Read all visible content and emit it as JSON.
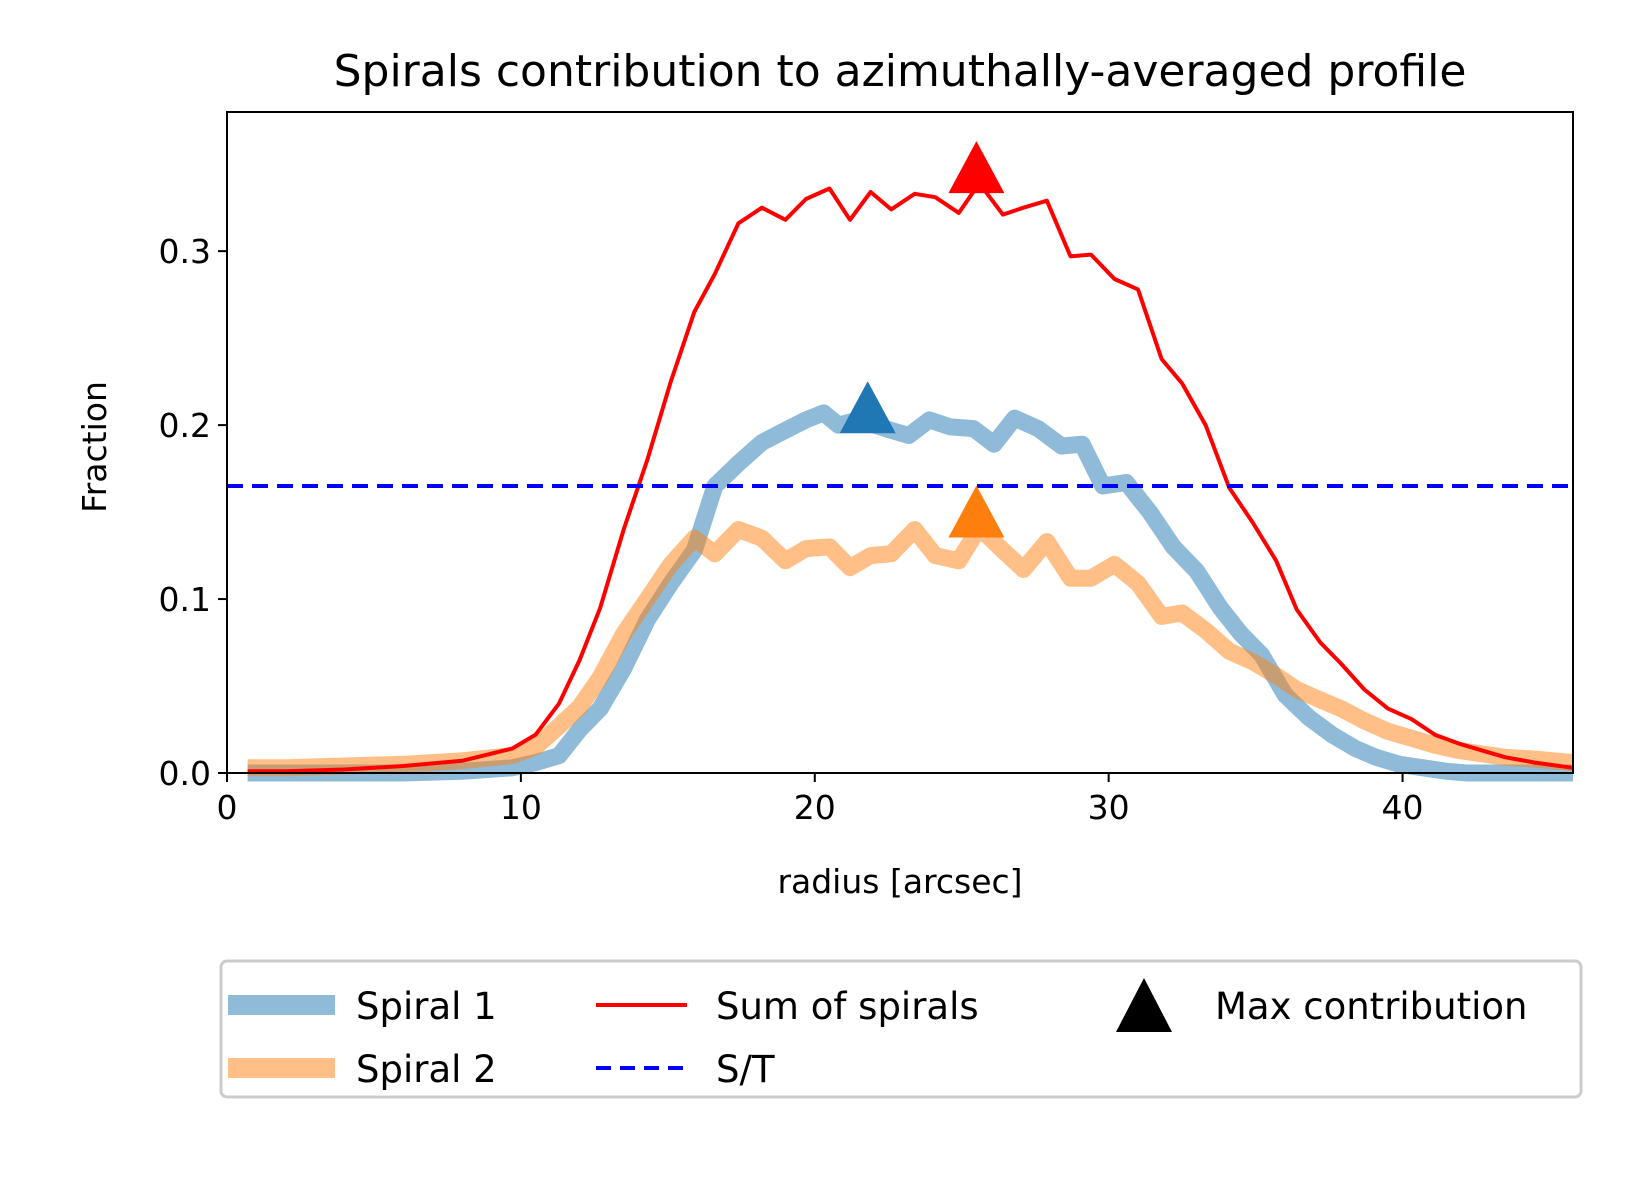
{
  "chart_data": {
    "type": "line",
    "title": "Spirals contribution to azimuthally-averaged profile",
    "xlabel": "radius [arcsec]",
    "ylabel": "Fraction",
    "xlim": [
      0,
      45.8
    ],
    "ylim": [
      0,
      0.38
    ],
    "xticks": [
      0,
      10,
      20,
      30,
      40
    ],
    "xtick_labels": [
      "0",
      "10",
      "20",
      "30",
      "40"
    ],
    "yticks": [
      0.0,
      0.1,
      0.2,
      0.3
    ],
    "ytick_labels": [
      "0.0",
      "0.1",
      "0.2",
      "0.3"
    ],
    "legend_position": "below plot",
    "series": [
      {
        "name": "Spiral 1",
        "color": "#1f77b4",
        "alpha": 0.5,
        "style": "thick",
        "x": [
          0.7,
          2,
          4,
          6,
          8,
          9.7,
          10.5,
          11.3,
          12,
          12.7,
          13.5,
          14.3,
          15.1,
          15.9,
          16.6,
          17.4,
          18.2,
          19,
          19.7,
          20.3,
          20.8,
          21.5,
          22.4,
          23.2,
          23.9,
          24.6,
          25.4,
          26.1,
          26.8,
          27.6,
          28.4,
          29.1,
          29.8,
          30.6,
          31.4,
          32.2,
          33,
          33.8,
          34.5,
          35.2,
          36,
          36.8,
          37.6,
          38.4,
          39.1,
          39.9,
          40.7,
          41.5,
          42.2,
          43,
          44,
          45.8
        ],
        "y": [
          0.0,
          0.0,
          0.0,
          0.0,
          0.001,
          0.003,
          0.006,
          0.01,
          0.025,
          0.037,
          0.06,
          0.088,
          0.109,
          0.128,
          0.165,
          0.178,
          0.19,
          0.197,
          0.203,
          0.207,
          0.2,
          0.203,
          0.198,
          0.194,
          0.203,
          0.199,
          0.198,
          0.189,
          0.204,
          0.198,
          0.188,
          0.189,
          0.165,
          0.167,
          0.15,
          0.13,
          0.116,
          0.095,
          0.08,
          0.068,
          0.045,
          0.032,
          0.022,
          0.014,
          0.009,
          0.005,
          0.003,
          0.001,
          0.0,
          0.0,
          0.0,
          0.0
        ]
      },
      {
        "name": "Spiral 2",
        "color": "#ff7f0e",
        "alpha": 0.5,
        "style": "thick",
        "x": [
          0.7,
          2,
          4,
          6,
          8,
          9.7,
          10.5,
          11.3,
          12,
          12.7,
          13.5,
          14.3,
          15.1,
          15.9,
          16.6,
          17.4,
          18.2,
          19,
          19.7,
          20.5,
          21.2,
          21.9,
          22.6,
          23.4,
          24.1,
          24.9,
          25.6,
          26.4,
          27.1,
          27.9,
          28.7,
          29.4,
          30.2,
          31,
          31.8,
          32.5,
          33.3,
          34.1,
          34.9,
          35.7,
          36.4,
          37.2,
          37.9,
          38.7,
          39.5,
          40.3,
          41.1,
          41.9,
          42.7,
          43.5,
          44.5,
          45.8
        ],
        "y": [
          0.003,
          0.003,
          0.004,
          0.005,
          0.007,
          0.01,
          0.015,
          0.027,
          0.038,
          0.055,
          0.08,
          0.1,
          0.12,
          0.135,
          0.126,
          0.14,
          0.135,
          0.122,
          0.129,
          0.13,
          0.118,
          0.125,
          0.126,
          0.14,
          0.125,
          0.122,
          0.141,
          0.128,
          0.117,
          0.133,
          0.112,
          0.112,
          0.12,
          0.109,
          0.09,
          0.092,
          0.082,
          0.07,
          0.064,
          0.056,
          0.048,
          0.042,
          0.037,
          0.03,
          0.024,
          0.02,
          0.016,
          0.013,
          0.011,
          0.009,
          0.008,
          0.006
        ]
      },
      {
        "name": "Sum of spirals",
        "color": "#ff0000",
        "alpha": 1,
        "style": "solid",
        "x": [
          0.7,
          2,
          4,
          6,
          8,
          9.7,
          10.5,
          11.3,
          12,
          12.7,
          13.5,
          14.3,
          15.1,
          15.9,
          16.6,
          17.4,
          18.2,
          19,
          19.7,
          20.5,
          21.2,
          21.9,
          22.6,
          23.4,
          24.1,
          24.9,
          25.6,
          26.4,
          27.1,
          27.9,
          28.7,
          29.4,
          30.2,
          31,
          31.8,
          32.5,
          33.3,
          34.1,
          34.9,
          35.7,
          36.4,
          37.2,
          37.9,
          38.7,
          39.5,
          40.3,
          41.1,
          41.9,
          42.7,
          43.5,
          44.5,
          45.8
        ],
        "y": [
          0.001,
          0.001,
          0.002,
          0.004,
          0.007,
          0.014,
          0.022,
          0.04,
          0.065,
          0.095,
          0.14,
          0.18,
          0.225,
          0.265,
          0.287,
          0.316,
          0.325,
          0.318,
          0.33,
          0.336,
          0.318,
          0.334,
          0.324,
          0.333,
          0.331,
          0.322,
          0.339,
          0.321,
          0.325,
          0.329,
          0.297,
          0.298,
          0.284,
          0.278,
          0.238,
          0.224,
          0.2,
          0.164,
          0.144,
          0.122,
          0.094,
          0.075,
          0.063,
          0.048,
          0.037,
          0.031,
          0.022,
          0.017,
          0.013,
          0.009,
          0.006,
          0.003
        ]
      },
      {
        "name": "S/T",
        "color": "#0000ff",
        "style": "dashed",
        "y_constant": 0.165
      }
    ],
    "markers": [
      {
        "name": "Max contribution",
        "series": "Spiral 1",
        "x": 21.8,
        "y": 0.208,
        "color": "#1f77b4"
      },
      {
        "name": "Max contribution",
        "series": "Spiral 2",
        "x": 25.5,
        "y": 0.148,
        "color": "#ff7f0e"
      },
      {
        "name": "Max contribution",
        "series": "Sum of spirals",
        "x": 25.5,
        "y": 0.346,
        "color": "#ff0000"
      }
    ],
    "legend": [
      {
        "label": "Spiral 1",
        "kind": "thick-line",
        "color": "#1f77b4",
        "alpha": 0.5
      },
      {
        "label": "Sum of spirals",
        "kind": "line",
        "color": "#ff0000"
      },
      {
        "label": "Max contribution",
        "kind": "triangle",
        "color": "#000000"
      },
      {
        "label": "Spiral 2",
        "kind": "thick-line",
        "color": "#ff7f0e",
        "alpha": 0.5
      },
      {
        "label": "S/T",
        "kind": "dashed-line",
        "color": "#0000ff"
      }
    ]
  }
}
